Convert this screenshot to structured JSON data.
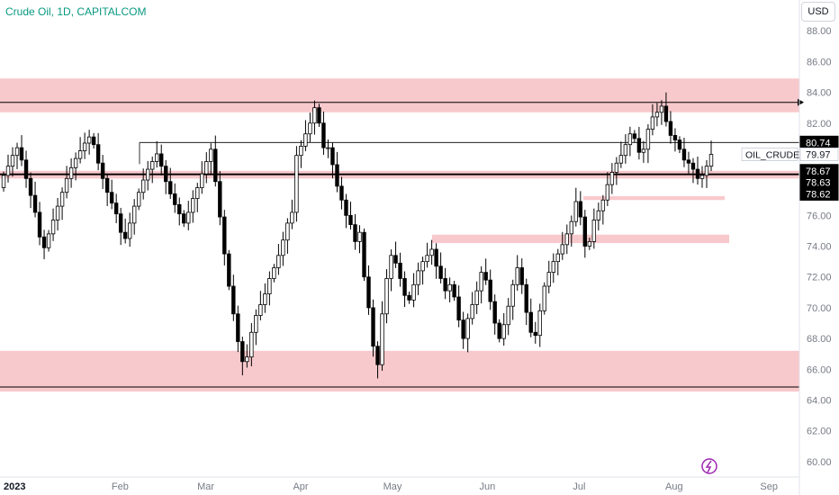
{
  "header": {
    "title": "Crude Oil, 1D, CAPITALCOM",
    "currency": "USD"
  },
  "colors": {
    "up": "#ffffff",
    "down": "#000000",
    "zone": "#f8c9cc",
    "line": "#000000",
    "title": "#089981",
    "axis_text": "#787b86",
    "logo": "#9c27b0"
  },
  "chart_data": {
    "type": "candlestick",
    "ylim": [
      59.0,
      90.0
    ],
    "y_ticks": [
      "88.00",
      "86.00",
      "84.00",
      "82.00",
      "80.00",
      "78.00",
      "76.00",
      "74.00",
      "72.00",
      "70.00",
      "68.00",
      "66.00",
      "64.00",
      "62.00",
      "60.00"
    ],
    "x_labels": [
      "2023",
      "Feb",
      "Mar",
      "Apr",
      "May",
      "Jun",
      "Jul",
      "Aug",
      "Sep"
    ],
    "x_label_dates": [
      "2023-01-01",
      "2023-02-01",
      "2023-03-01",
      "2023-04-01",
      "2023-05-01",
      "2023-06-01",
      "2023-07-01",
      "2023-08-01",
      "2023-09-01"
    ],
    "closes": [
      78.6,
      79.2,
      79.9,
      80.4,
      79.6,
      78.4,
      77.3,
      76.2,
      74.6,
      73.9,
      74.8,
      75.7,
      76.6,
      77.5,
      78.4,
      79.1,
      79.7,
      80.2,
      80.7,
      81.1,
      80.6,
      79.4,
      78.4,
      77.5,
      76.8,
      76.1,
      74.9,
      74.5,
      75.5,
      76.6,
      77.5,
      78.3,
      79.0,
      79.5,
      80.0,
      79.2,
      78.2,
      77.4,
      76.7,
      76.1,
      75.5,
      76.2,
      77.1,
      77.8,
      78.7,
      79.5,
      80.3,
      78.2,
      75.9,
      73.5,
      71.4,
      69.6,
      67.8,
      66.5,
      66.8,
      68.4,
      69.5,
      70.2,
      70.9,
      71.9,
      72.6,
      73.4,
      74.4,
      75.5,
      76.2,
      79.9,
      80.5,
      81.3,
      82.0,
      83.0,
      82.0,
      80.4,
      80.4,
      79.3,
      77.9,
      77.0,
      76.0,
      75.4,
      74.3,
      74.9,
      72.0,
      70.0,
      67.5,
      66.3,
      69.6,
      71.9,
      73.4,
      72.9,
      71.9,
      70.8,
      70.5,
      71.5,
      72.4,
      73.0,
      73.4,
      73.8,
      72.7,
      71.9,
      71.1,
      71.5,
      70.7,
      69.2,
      68.0,
      69.3,
      70.2,
      71.1,
      72.3,
      71.8,
      70.4,
      69.0,
      68.0,
      68.9,
      70.1,
      71.5,
      72.6,
      71.5,
      69.7,
      68.4,
      68.2,
      69.8,
      71.4,
      72.3,
      73.0,
      73.5,
      74.1,
      74.8,
      75.6,
      76.9,
      75.9,
      74.0,
      74.3,
      75.7,
      76.3,
      77.0,
      78.0,
      78.8,
      79.4,
      79.9,
      80.6,
      81.3,
      81.0,
      80.1,
      80.3,
      81.6,
      82.4,
      82.7,
      83.1,
      82.1,
      81.2,
      80.9,
      80.3,
      79.6,
      79.4,
      79.0,
      78.4,
      78.6,
      79.2,
      79.97
    ],
    "reference_lines": [
      {
        "price": 83.35
      },
      {
        "price": 80.74
      },
      {
        "price": 78.67
      },
      {
        "price": 64.85
      }
    ],
    "zones": [
      {
        "from": 82.7,
        "to": 84.9
      },
      {
        "from": 78.4,
        "to": 78.9
      },
      {
        "from": 64.55,
        "to": 67.2
      },
      {
        "from": 77.0,
        "to": 77.25
      },
      {
        "from": 74.2,
        "to": 74.75
      }
    ],
    "price_labels": [
      {
        "text": "80.74",
        "price": 80.74
      },
      {
        "text": "79.97",
        "price": 79.97,
        "name": "OIL_CRUDE"
      },
      {
        "text": "78.67",
        "price": 78.9
      },
      {
        "text": "78.63",
        "price": 78.15
      },
      {
        "text": "78.62",
        "price": 77.4
      }
    ]
  }
}
